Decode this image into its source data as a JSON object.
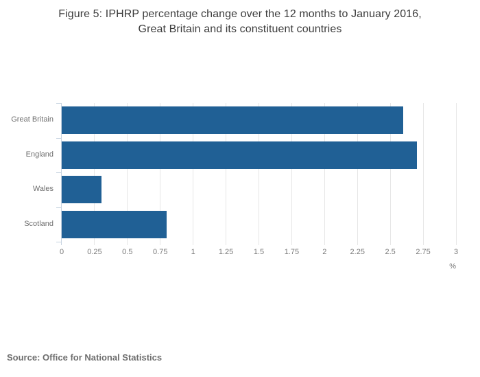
{
  "page": {
    "title_line1": "Figure 5: IPHRP percentage change over the 12 months to January 2016,",
    "title_line2": "Great Britain and its constituent countries",
    "source": "Source: Office for National Statistics"
  },
  "chart_data": {
    "type": "bar",
    "orientation": "horizontal",
    "title": "Figure 5: IPHRP percentage change over the 12 months to January 2016, Great Britain and its constituent countries",
    "categories": [
      "Great Britain",
      "England",
      "Wales",
      "Scotland"
    ],
    "values": [
      2.6,
      2.7,
      0.3,
      0.8
    ],
    "xlabel": "%",
    "ylabel": "",
    "xlim": [
      0,
      3
    ],
    "xticks": [
      0,
      0.25,
      0.5,
      0.75,
      1,
      1.25,
      1.5,
      1.75,
      2,
      2.25,
      2.5,
      2.75,
      3
    ],
    "grid": true,
    "legend": false,
    "colors": {
      "bar": "#206095",
      "grid": "#e6e6e6",
      "axis": "#c6d3e0",
      "title_text": "#3b3b3b",
      "category_text": "#6e6e6e",
      "tick_text": "#7a7a7a",
      "source_text": "#6e6e6e"
    }
  }
}
